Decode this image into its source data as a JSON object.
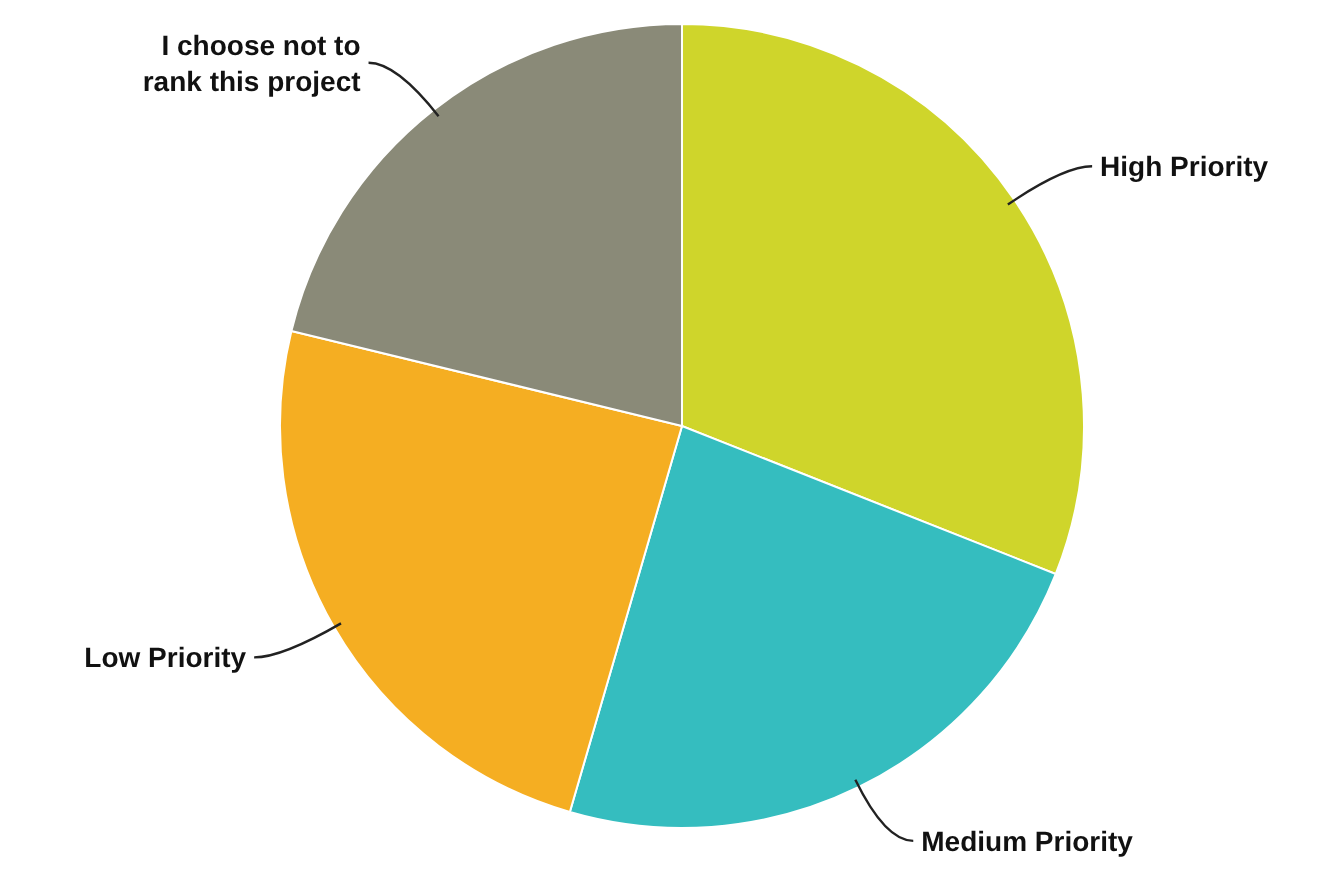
{
  "chart_data": {
    "type": "pie",
    "categories": [
      "High Priority",
      "Medium Priority",
      "Low Priority",
      "I choose not to rank this project"
    ],
    "values": [
      31,
      23.5,
      24.3,
      21.2
    ],
    "colors": [
      "#cfd52b",
      "#35bdbf",
      "#f5ae22",
      "#8a8a78"
    ]
  }
}
